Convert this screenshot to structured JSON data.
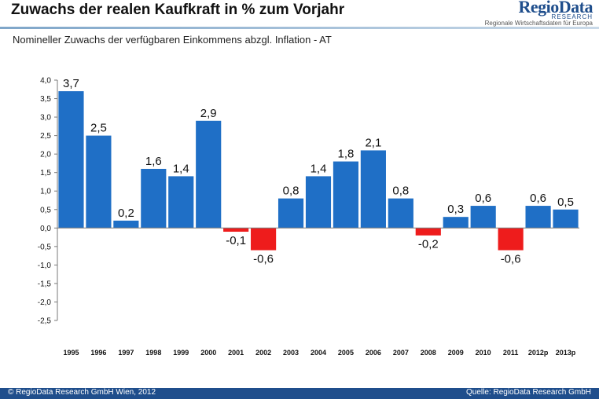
{
  "header": {
    "title": "Zuwachs der realen Kaufkraft in % zum Vorjahr",
    "logo_name": "RegioData",
    "logo_sub": "RESEARCH",
    "logo_tagline": "Regionale Wirtschaftsdaten für Europa"
  },
  "subtitle": "Nomineller Zuwachs der verfügbaren Einkommens abzgl. Inflation - AT",
  "footer": {
    "left": "© RegioData Research GmbH Wien, 2012",
    "right": "Quelle: RegioData Research GmbH"
  },
  "colors": {
    "positive": "#1f6fc6",
    "negative": "#ee1c1c",
    "axis": "#7a7a7a",
    "accent": "#1f4e8c"
  },
  "chart_data": {
    "type": "bar",
    "categories": [
      "1995",
      "1996",
      "1997",
      "1998",
      "1999",
      "2000",
      "2001",
      "2002",
      "2003",
      "2004",
      "2005",
      "2006",
      "2007",
      "2008",
      "2009",
      "2010",
      "2011",
      "2012p",
      "2013p"
    ],
    "values": [
      3.7,
      2.5,
      0.2,
      1.6,
      1.4,
      2.9,
      -0.1,
      -0.6,
      0.8,
      1.4,
      1.8,
      2.1,
      0.8,
      -0.2,
      0.3,
      0.6,
      -0.6,
      0.6,
      0.5
    ],
    "data_labels": [
      "3,7",
      "2,5",
      "0,2",
      "1,6",
      "1,4",
      "2,9",
      "-0,1",
      "-0,6",
      "0,8",
      "1,4",
      "1,8",
      "2,1",
      "0,8",
      "-0,2",
      "0,3",
      "0,6",
      "-0,6",
      "0,6",
      "0,5"
    ],
    "yticks": [
      "4,0",
      "3,5",
      "3,0",
      "2,5",
      "2,0",
      "1,5",
      "1,0",
      "0,5",
      "0,0",
      "-0,5",
      "-1,0",
      "-1,5",
      "-2,0",
      "-2,5"
    ],
    "ylim": [
      -2.5,
      4.0
    ],
    "ystep": 0.5,
    "grid": false,
    "legend": "none"
  }
}
